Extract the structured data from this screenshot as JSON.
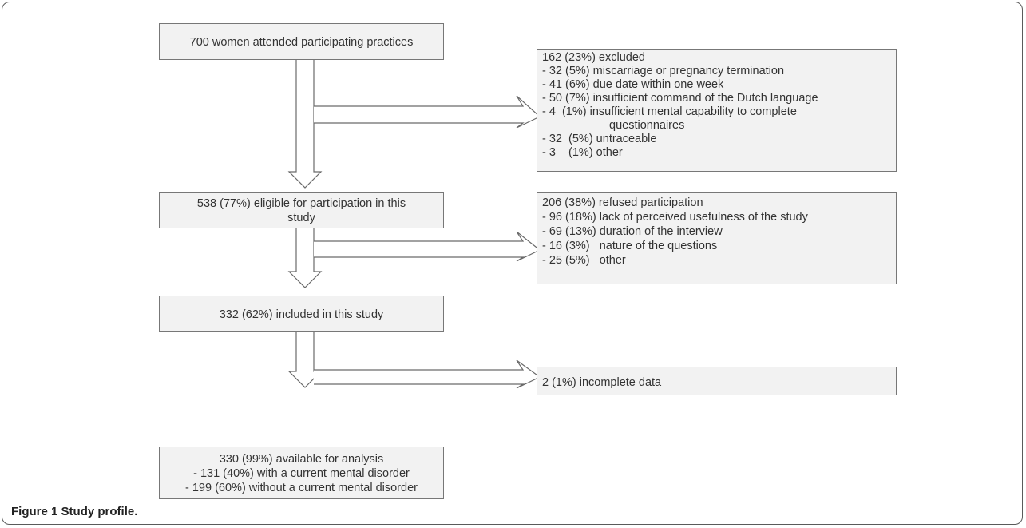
{
  "flow": {
    "box1": {
      "text": "700 women attended participating practices"
    },
    "excluded": {
      "title": "162 (23%) excluded",
      "items": [
        "- 32 (5%) miscarriage or pregnancy termination",
        "- 41 (6%) due date within one week",
        "- 50 (7%) insufficient command of the Dutch language",
        "- 4  (1%) insufficient mental capability to complete",
        "questionnaires",
        "- 32  (5%) untraceable",
        "- 3    (1%) other"
      ]
    },
    "box2": {
      "line1": "538 (77%) eligible for participation in this",
      "line2": "study"
    },
    "refused": {
      "title": "206 (38%) refused participation",
      "items": [
        "- 96 (18%) lack of perceived usefulness of the study",
        "- 69 (13%) duration of the interview",
        "- 16 (3%)   nature of the questions",
        "- 25 (5%)   other"
      ]
    },
    "box3": {
      "text": "332 (62%) included in this study"
    },
    "incomplete": {
      "text": "2 (1%) incomplete data"
    },
    "box4": {
      "line1": "330 (99%) available for analysis",
      "line2": "- 131 (40%) with a current mental disorder",
      "line3": "- 199 (60%) without a current mental disorder"
    }
  },
  "caption": {
    "label": "Figure 1",
    "text": "Study profile."
  }
}
